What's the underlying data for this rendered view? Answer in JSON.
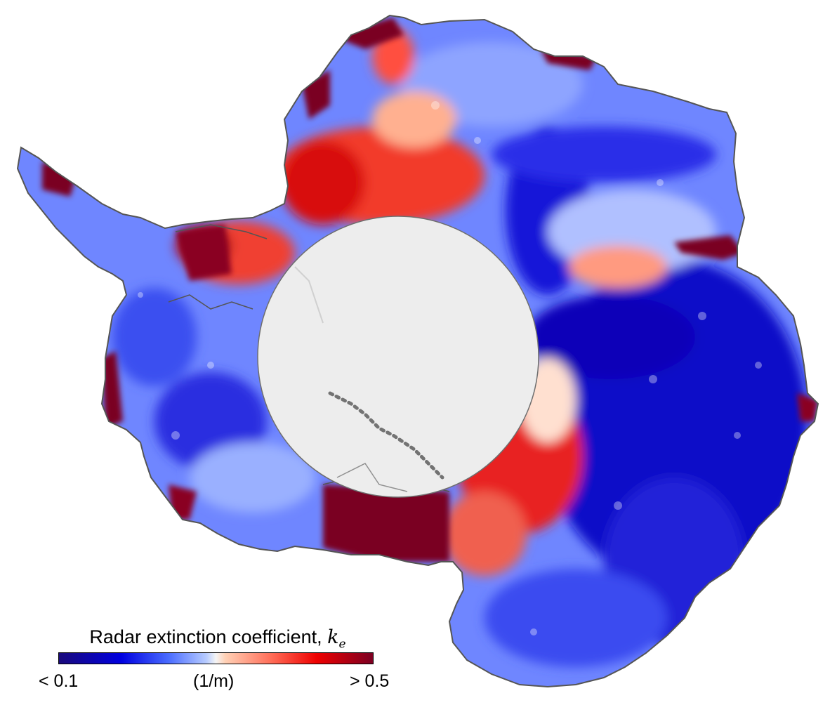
{
  "legend": {
    "title": "Radar extinction coefficient,",
    "symbol": "k",
    "subscript": "e",
    "min_label": "< 0.1",
    "unit_label": "(1/m)",
    "max_label": "> 0.5"
  },
  "colorbar_stops": [
    "#1a0a7a",
    "#0000e0",
    "#4a6cff",
    "#b8ccff",
    "#f5f5f5",
    "#ffd0b5",
    "#ff6a55",
    "#ee0000",
    "#7a0022"
  ],
  "colors": {
    "continent_outline": "#555555",
    "pole_hole_fill": "#ededed",
    "pole_hole_stroke": "#6e6e6e"
  }
}
